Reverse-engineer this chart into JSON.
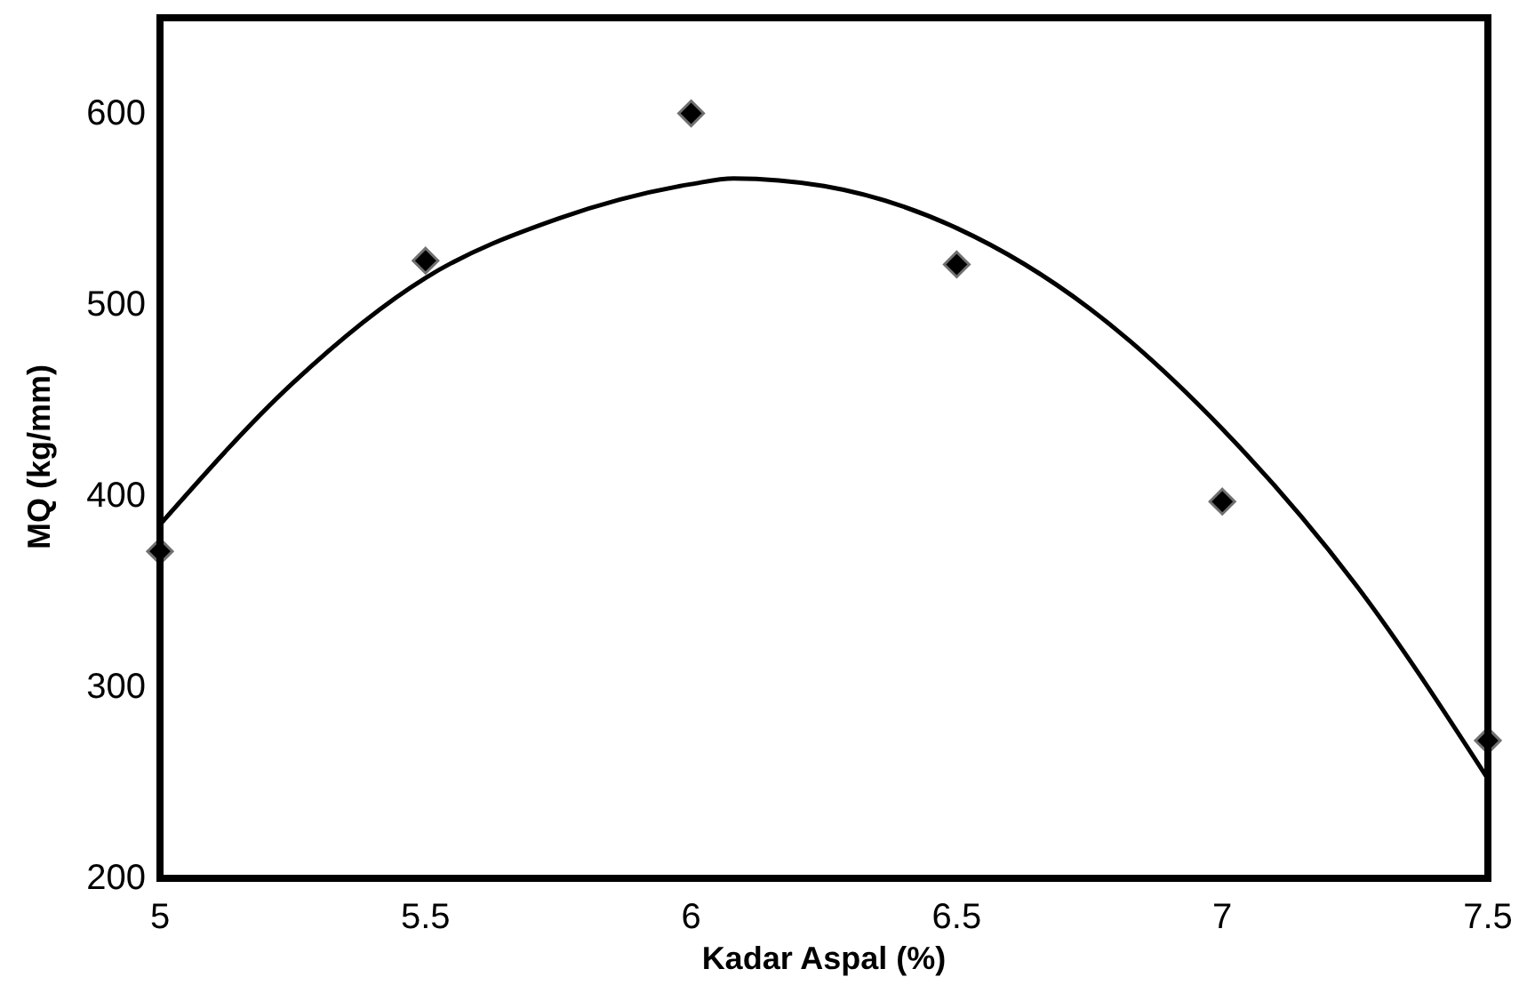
{
  "chart_data": {
    "type": "scatter",
    "xlabel": "Kadar Aspal (%)",
    "ylabel": "MQ (kg/mm)",
    "xlim": [
      5,
      7.5
    ],
    "xticks": [
      5,
      5.5,
      6,
      6.5,
      7,
      7.5
    ],
    "ylim": [
      200,
      650
    ],
    "yticks": [
      200,
      300,
      400,
      500,
      600
    ],
    "grid": false,
    "series": [
      {
        "color": "#000000",
        "marker": "diamond",
        "x": [
          5,
          5.5,
          6,
          6.5,
          7,
          7.5
        ],
        "values": [
          371,
          523,
          600,
          521,
          397,
          272
        ]
      },
      {
        "type": "line",
        "color": "#000000",
        "marker": "none",
        "line_style": "solid",
        "x": [
          5,
          5.25,
          5.5,
          5.75,
          6,
          6.08,
          6.25,
          6.5,
          6.75,
          7,
          7.25,
          7.5
        ],
        "values": [
          385,
          459,
          514,
          545,
          563,
          566,
          562,
          540,
          498,
          435,
          354,
          252
        ]
      }
    ]
  }
}
